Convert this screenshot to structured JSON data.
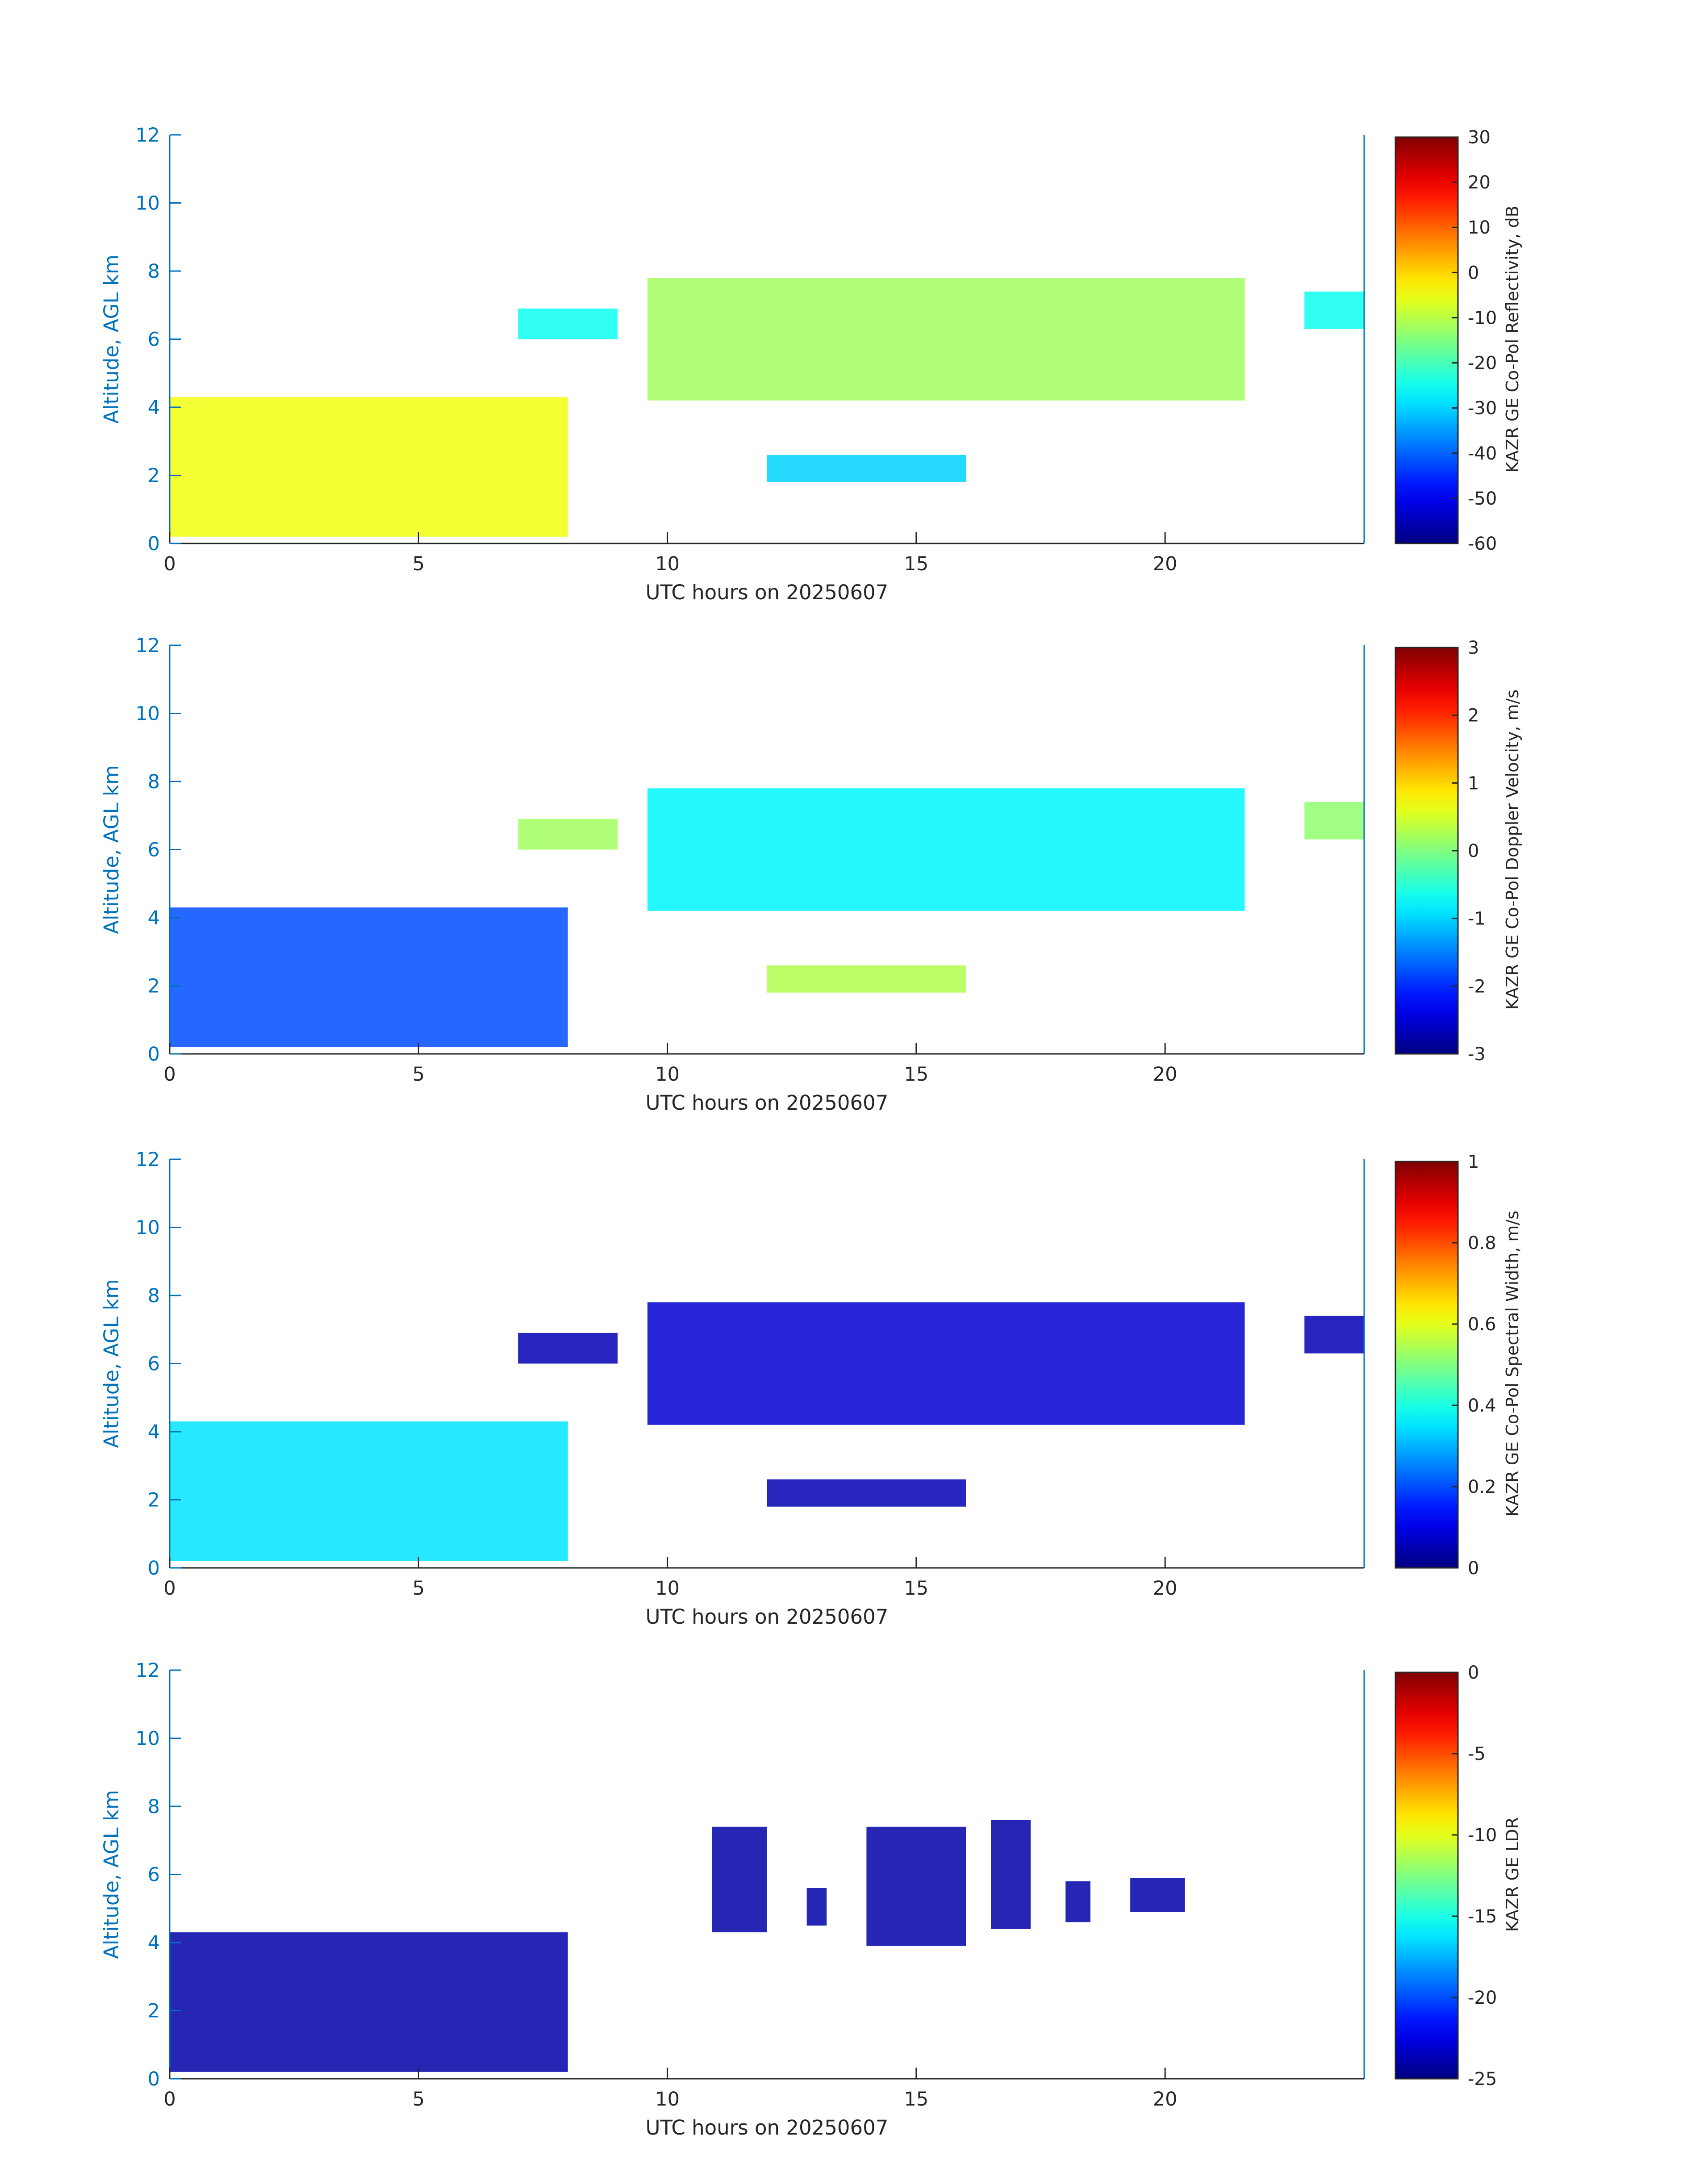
{
  "chart_data": [
    {
      "type": "heatmap",
      "xlabel": "UTC hours on 20250607",
      "ylabel": "Altitude, AGL km",
      "xlim": [
        0,
        24
      ],
      "ylim": [
        0,
        12
      ],
      "xticks": [
        "0",
        "5",
        "10",
        "15",
        "20"
      ],
      "yticks": [
        "0",
        "2",
        "4",
        "6",
        "8",
        "10",
        "12"
      ],
      "colorbar": {
        "label": "KAZR GE Co-Pol Reflectivity, dB",
        "ticks": [
          "30",
          "20",
          "10",
          "0",
          "-10",
          "-20",
          "-30",
          "-40",
          "-50",
          "-60"
        ],
        "range": [
          -60,
          30
        ],
        "colormap": "jet"
      },
      "overlay_points": "cloud-base markers (black dots)",
      "echo_regions": [
        {
          "x0": 0.0,
          "x1": 8.0,
          "y0": 0.2,
          "y1": 4.3,
          "value": -5
        },
        {
          "x0": 7.0,
          "x1": 9.0,
          "y0": 6.0,
          "y1": 6.9,
          "value": -25
        },
        {
          "x0": 9.6,
          "x1": 21.6,
          "y0": 4.2,
          "y1": 7.8,
          "value": -12
        },
        {
          "x0": 12.0,
          "x1": 16.0,
          "y0": 1.8,
          "y1": 2.6,
          "value": -30
        },
        {
          "x0": 22.8,
          "x1": 24.0,
          "y0": 6.3,
          "y1": 7.4,
          "value": -25
        }
      ]
    },
    {
      "type": "heatmap",
      "xlabel": "UTC hours on 20250607",
      "ylabel": "Altitude, AGL km",
      "xlim": [
        0,
        24
      ],
      "ylim": [
        0,
        12
      ],
      "xticks": [
        "0",
        "5",
        "10",
        "15",
        "20"
      ],
      "yticks": [
        "0",
        "2",
        "4",
        "6",
        "8",
        "10",
        "12"
      ],
      "colorbar": {
        "label": "KAZR GE Co-Pol Doppler Velocity, m/s",
        "ticks": [
          "3",
          "2",
          "1",
          "0",
          "-1",
          "-2",
          "-3"
        ],
        "range": [
          -3,
          3
        ],
        "colormap": "jet"
      },
      "echo_regions": [
        {
          "x0": 0.0,
          "x1": 8.0,
          "y0": 0.2,
          "y1": 4.3,
          "value": -1.8
        },
        {
          "x0": 7.0,
          "x1": 9.0,
          "y0": 6.0,
          "y1": 6.9,
          "value": 0.2
        },
        {
          "x0": 9.6,
          "x1": 21.6,
          "y0": 4.2,
          "y1": 7.8,
          "value": -0.8
        },
        {
          "x0": 12.0,
          "x1": 16.0,
          "y0": 1.8,
          "y1": 2.6,
          "value": 0.3
        },
        {
          "x0": 22.8,
          "x1": 24.0,
          "y0": 6.3,
          "y1": 7.4,
          "value": 0.1
        }
      ]
    },
    {
      "type": "heatmap",
      "xlabel": "UTC hours on 20250607",
      "ylabel": "Altitude, AGL km",
      "xlim": [
        0,
        24
      ],
      "ylim": [
        0,
        12
      ],
      "xticks": [
        "0",
        "5",
        "10",
        "15",
        "20"
      ],
      "yticks": [
        "0",
        "2",
        "4",
        "6",
        "8",
        "10",
        "12"
      ],
      "colorbar": {
        "label": "KAZR GE Co-Pol Spectral Width, m/s",
        "ticks": [
          "1",
          "0.8",
          "0.6",
          "0.4",
          "0.2",
          "0"
        ],
        "range": [
          0,
          1
        ],
        "colormap": "jet"
      },
      "echo_regions": [
        {
          "x0": 0.0,
          "x1": 8.0,
          "y0": 0.2,
          "y1": 4.3,
          "value": 0.35
        },
        {
          "x0": 7.0,
          "x1": 9.0,
          "y0": 6.0,
          "y1": 6.9,
          "value": 0.05
        },
        {
          "x0": 9.6,
          "x1": 21.6,
          "y0": 4.2,
          "y1": 7.8,
          "value": 0.08
        },
        {
          "x0": 12.0,
          "x1": 16.0,
          "y0": 1.8,
          "y1": 2.6,
          "value": 0.05
        },
        {
          "x0": 22.8,
          "x1": 24.0,
          "y0": 6.3,
          "y1": 7.4,
          "value": 0.05
        }
      ]
    },
    {
      "type": "heatmap",
      "xlabel": "UTC hours on 20250607",
      "ylabel": "Altitude, AGL km",
      "xlim": [
        0,
        24
      ],
      "ylim": [
        0,
        12
      ],
      "xticks": [
        "0",
        "5",
        "10",
        "15",
        "20"
      ],
      "yticks": [
        "0",
        "2",
        "4",
        "6",
        "8",
        "10",
        "12"
      ],
      "colorbar": {
        "label": "KAZR GE LDR",
        "ticks": [
          "0",
          "-5",
          "-10",
          "-15",
          "-20",
          "-25"
        ],
        "range": [
          -25,
          0
        ],
        "colormap": "jet"
      },
      "echo_regions": [
        {
          "x0": 0.0,
          "x1": 8.0,
          "y0": 0.2,
          "y1": 4.3,
          "value": -24
        },
        {
          "x0": 10.9,
          "x1": 12.0,
          "y0": 4.3,
          "y1": 7.4,
          "value": -24
        },
        {
          "x0": 12.8,
          "x1": 13.2,
          "y0": 4.5,
          "y1": 5.6,
          "value": -24
        },
        {
          "x0": 14.0,
          "x1": 16.0,
          "y0": 3.9,
          "y1": 7.4,
          "value": -24
        },
        {
          "x0": 16.5,
          "x1": 17.3,
          "y0": 4.4,
          "y1": 7.6,
          "value": -24
        },
        {
          "x0": 18.0,
          "x1": 18.5,
          "y0": 4.6,
          "y1": 5.8,
          "value": -24
        },
        {
          "x0": 19.3,
          "x1": 20.4,
          "y0": 4.9,
          "y1": 5.9,
          "value": -24
        }
      ]
    }
  ]
}
